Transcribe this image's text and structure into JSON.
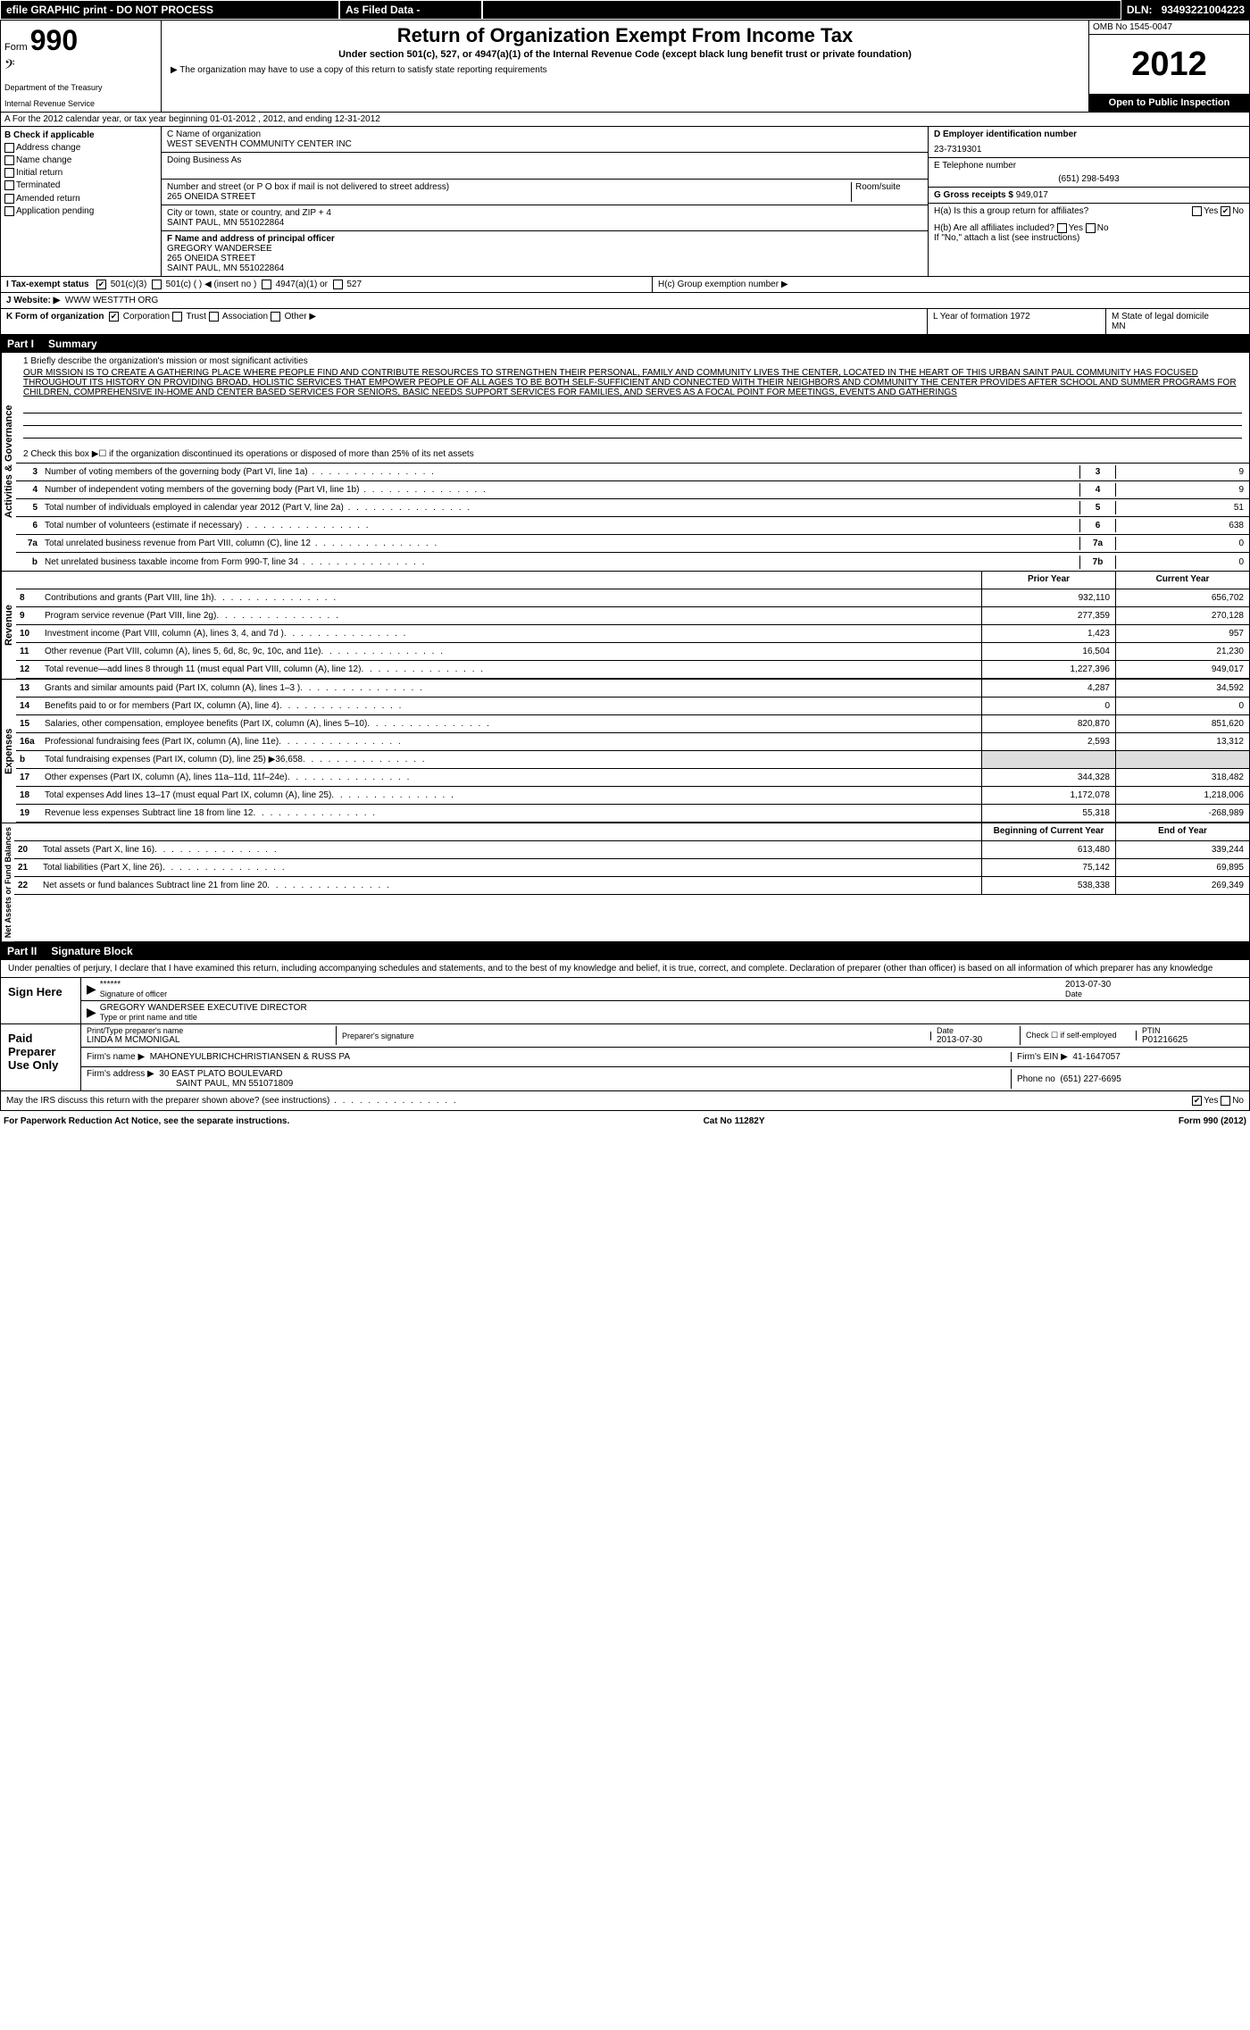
{
  "topbar": {
    "efile": "efile GRAPHIC print - DO NOT PROCESS",
    "asfiled": "As Filed Data -",
    "dln_label": "DLN:",
    "dln": "93493221004223"
  },
  "header": {
    "form_label": "Form",
    "form_num": "990",
    "dept": "Department of the Treasury",
    "irs": "Internal Revenue Service",
    "title": "Return of Organization Exempt From Income Tax",
    "sub": "Under section 501(c), 527, or 4947(a)(1) of the Internal Revenue Code (except black lung benefit trust or private foundation)",
    "note": "▶ The organization may have to use a copy of this return to satisfy state reporting requirements",
    "omb": "OMB No 1545-0047",
    "year": "2012",
    "open": "Open to Public Inspection"
  },
  "sectionA": "A For the 2012 calendar year, or tax year beginning 01-01-2012     , 2012, and ending 12-31-2012",
  "colB": {
    "label": "B Check if applicable",
    "items": [
      "Address change",
      "Name change",
      "Initial return",
      "Terminated",
      "Amended return",
      "Application pending"
    ]
  },
  "colC": {
    "name_label": "C Name of organization",
    "name": "WEST SEVENTH COMMUNITY CENTER INC",
    "dba_label": "Doing Business As",
    "addr_label": "Number and street (or P O box if mail is not delivered to street address)",
    "room_label": "Room/suite",
    "addr": "265 ONEIDA STREET",
    "city_label": "City or town, state or country, and ZIP + 4",
    "city": "SAINT PAUL, MN 551022864",
    "f_label": "F Name and address of principal officer",
    "f_name": "GREGORY WANDERSEE",
    "f_addr": "265 ONEIDA STREET",
    "f_city": "SAINT PAUL, MN 551022864"
  },
  "colRight": {
    "d_label": "D Employer identification number",
    "ein": "23-7319301",
    "e_label": "E Telephone number",
    "phone": "(651) 298-5493",
    "g_label": "G Gross receipts $",
    "g_val": "949,017",
    "ha_label": "H(a) Is this a group return for affiliates?",
    "hb_label": "H(b) Are all affiliates included?",
    "hb_note": "If \"No,\" attach a list (see instructions)",
    "hc_label": "H(c) Group exemption number ▶"
  },
  "rowI": {
    "label": "I  Tax-exempt status",
    "opts": [
      "501(c)(3)",
      "501(c) (   ) ◀ (insert no )",
      "4947(a)(1) or",
      "527"
    ]
  },
  "rowJ": {
    "label": "J  Website: ▶",
    "val": "WWW WEST7TH ORG"
  },
  "rowK": {
    "label": "K Form of organization",
    "opts": [
      "Corporation",
      "Trust",
      "Association",
      "Other ▶"
    ],
    "l_label": "L Year of formation 1972",
    "m_label": "M State of legal domicile",
    "m_val": "MN"
  },
  "part1": {
    "header": "Part I",
    "title": "Summary",
    "section_ag": "Activities & Governance",
    "section_rev": "Revenue",
    "section_exp": "Expenses",
    "section_na": "Net Assets or Fund Balances",
    "line1_label": "1  Briefly describe the organization's mission or most significant activities",
    "mission": "OUR MISSION IS TO CREATE A GATHERING PLACE WHERE PEOPLE FIND AND CONTRIBUTE RESOURCES TO STRENGTHEN THEIR PERSONAL, FAMILY AND COMMUNITY LIVES THE CENTER, LOCATED IN THE HEART OF THIS URBAN SAINT PAUL COMMUNITY HAS FOCUSED THROUGHOUT ITS HISTORY ON PROVIDING BROAD, HOLISTIC SERVICES THAT EMPOWER PEOPLE OF ALL AGES TO BE BOTH SELF-SUFFICIENT AND CONNECTED WITH THEIR NEIGHBORS AND COMMUNITY THE CENTER PROVIDES AFTER SCHOOL AND SUMMER PROGRAMS FOR CHILDREN, COMPREHENSIVE IN-HOME AND CENTER BASED SERVICES FOR SENIORS, BASIC NEEDS SUPPORT SERVICES FOR FAMILIES, AND SERVES AS A FOCAL POINT FOR MEETINGS, EVENTS AND GATHERINGS",
    "line2": "2  Check this box ▶☐ if the organization discontinued its operations or disposed of more than 25% of its net assets",
    "lines_ag": [
      {
        "n": "3",
        "t": "Number of voting members of the governing body (Part VI, line 1a)",
        "b": "3",
        "v": "9"
      },
      {
        "n": "4",
        "t": "Number of independent voting members of the governing body (Part VI, line 1b)",
        "b": "4",
        "v": "9"
      },
      {
        "n": "5",
        "t": "Total number of individuals employed in calendar year 2012 (Part V, line 2a)",
        "b": "5",
        "v": "51"
      },
      {
        "n": "6",
        "t": "Total number of volunteers (estimate if necessary)",
        "b": "6",
        "v": "638"
      },
      {
        "n": "7a",
        "t": "Total unrelated business revenue from Part VIII, column (C), line 12",
        "b": "7a",
        "v": "0"
      },
      {
        "n": "b",
        "t": "Net unrelated business taxable income from Form 990-T, line 34",
        "b": "7b",
        "v": "0"
      }
    ],
    "col_prior": "Prior Year",
    "col_current": "Current Year",
    "lines_rev": [
      {
        "n": "8",
        "t": "Contributions and grants (Part VIII, line 1h)",
        "p": "932,110",
        "c": "656,702"
      },
      {
        "n": "9",
        "t": "Program service revenue (Part VIII, line 2g)",
        "p": "277,359",
        "c": "270,128"
      },
      {
        "n": "10",
        "t": "Investment income (Part VIII, column (A), lines 3, 4, and 7d )",
        "p": "1,423",
        "c": "957"
      },
      {
        "n": "11",
        "t": "Other revenue (Part VIII, column (A), lines 5, 6d, 8c, 9c, 10c, and 11e)",
        "p": "16,504",
        "c": "21,230"
      },
      {
        "n": "12",
        "t": "Total revenue—add lines 8 through 11 (must equal Part VIII, column (A), line 12)",
        "p": "1,227,396",
        "c": "949,017"
      }
    ],
    "lines_exp": [
      {
        "n": "13",
        "t": "Grants and similar amounts paid (Part IX, column (A), lines 1–3 )",
        "p": "4,287",
        "c": "34,592"
      },
      {
        "n": "14",
        "t": "Benefits paid to or for members (Part IX, column (A), line 4)",
        "p": "0",
        "c": "0"
      },
      {
        "n": "15",
        "t": "Salaries, other compensation, employee benefits (Part IX, column (A), lines 5–10)",
        "p": "820,870",
        "c": "851,620"
      },
      {
        "n": "16a",
        "t": "Professional fundraising fees (Part IX, column (A), line 11e)",
        "p": "2,593",
        "c": "13,312"
      },
      {
        "n": "b",
        "t": "Total fundraising expenses (Part IX, column (D), line 25) ▶36,658",
        "p": "",
        "c": ""
      },
      {
        "n": "17",
        "t": "Other expenses (Part IX, column (A), lines 11a–11d, 11f–24e)",
        "p": "344,328",
        "c": "318,482"
      },
      {
        "n": "18",
        "t": "Total expenses Add lines 13–17 (must equal Part IX, column (A), line 25)",
        "p": "1,172,078",
        "c": "1,218,006"
      },
      {
        "n": "19",
        "t": "Revenue less expenses Subtract line 18 from line 12",
        "p": "55,318",
        "c": "-268,989"
      }
    ],
    "col_begin": "Beginning of Current Year",
    "col_end": "End of Year",
    "lines_na": [
      {
        "n": "20",
        "t": "Total assets (Part X, line 16)",
        "p": "613,480",
        "c": "339,244"
      },
      {
        "n": "21",
        "t": "Total liabilities (Part X, line 26)",
        "p": "75,142",
        "c": "69,895"
      },
      {
        "n": "22",
        "t": "Net assets or fund balances Subtract line 21 from line 20",
        "p": "538,338",
        "c": "269,349"
      }
    ]
  },
  "part2": {
    "header": "Part II",
    "title": "Signature Block",
    "decl": "Under penalties of perjury, I declare that I have examined this return, including accompanying schedules and statements, and to the best of my knowledge and belief, it is true, correct, and complete. Declaration of preparer (other than officer) is based on all information of which preparer has any knowledge",
    "sign_here": "Sign Here",
    "sig_stars": "******",
    "sig_label": "Signature of officer",
    "sig_date": "2013-07-30",
    "date_label": "Date",
    "officer": "GREGORY WANDERSEE EXECUTIVE DIRECTOR",
    "officer_label": "Type or print name and title",
    "paid": "Paid Preparer Use Only",
    "prep_name_label": "Print/Type preparer's name",
    "prep_name": "LINDA M MCMONIGAL",
    "prep_sig_label": "Preparer's signature",
    "prep_date_label": "Date",
    "prep_date": "2013-07-30",
    "check_label": "Check ☐ if self-employed",
    "ptin_label": "PTIN",
    "ptin": "P01216625",
    "firm_name_label": "Firm's name    ▶",
    "firm_name": "MAHONEYULBRICHCHRISTIANSEN & RUSS PA",
    "firm_ein_label": "Firm's EIN ▶",
    "firm_ein": "41-1647057",
    "firm_addr_label": "Firm's address ▶",
    "firm_addr": "30 EAST PLATO BOULEVARD",
    "firm_city": "SAINT PAUL, MN 551071809",
    "firm_phone_label": "Phone no",
    "firm_phone": "(651) 227-6695",
    "discuss": "May the IRS discuss this return with the preparer shown above? (see instructions)"
  },
  "footer": {
    "pra": "For Paperwork Reduction Act Notice, see the separate instructions.",
    "cat": "Cat No 11282Y",
    "form": "Form 990 (2012)"
  }
}
